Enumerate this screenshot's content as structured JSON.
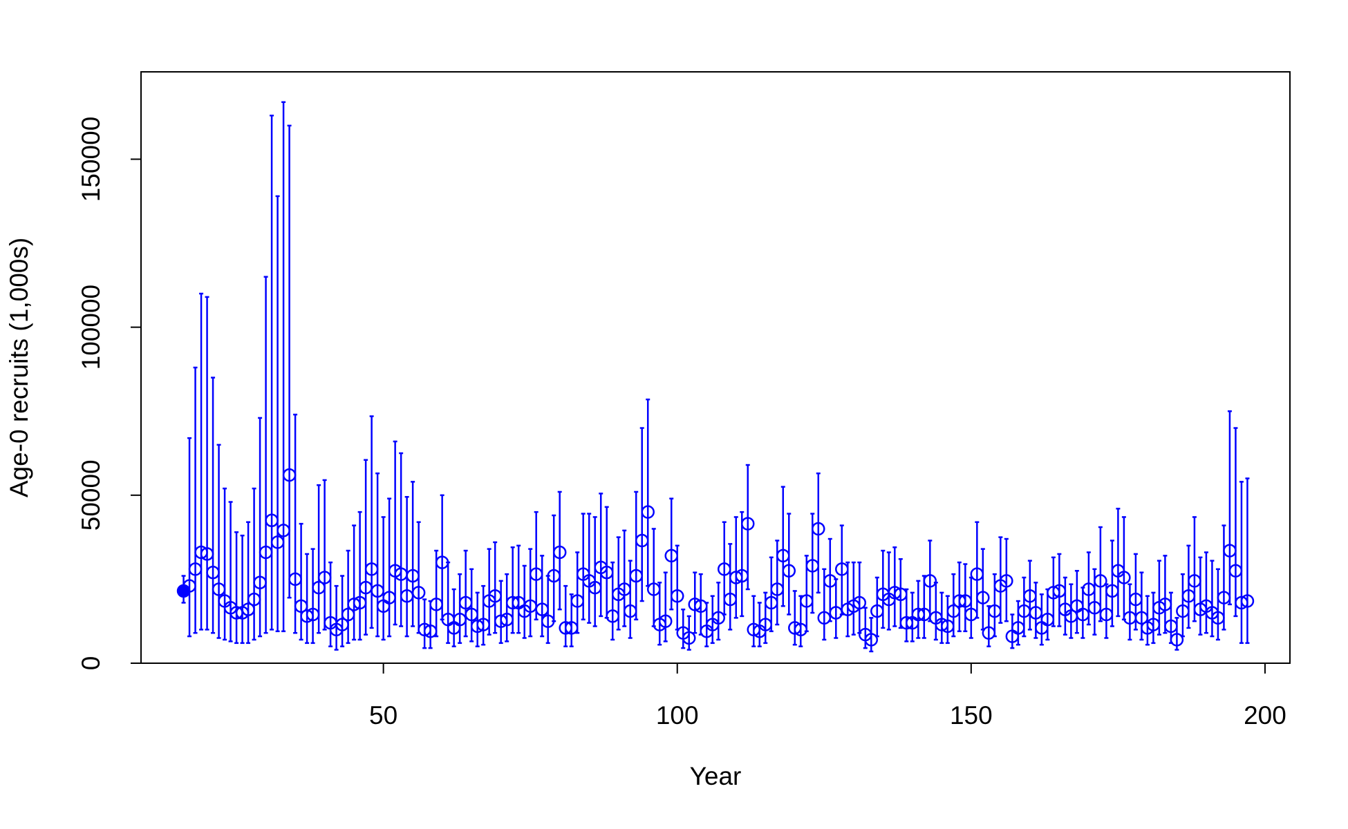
{
  "chart_data": {
    "type": "errorbar-scatter",
    "x_label": "Year",
    "y_label": "Age-0 recruits (1,000s)",
    "xlim": [
      8.76,
      204.24
    ],
    "ylim": [
      0,
      176000
    ],
    "xticks": [
      50,
      100,
      150,
      200
    ],
    "yticks": [
      0,
      50000,
      100000,
      150000
    ],
    "series": [
      {
        "color": "#0000ff",
        "marker": "filled",
        "x": [
          16
        ],
        "values": [
          21500
        ],
        "lower": [
          18000
        ],
        "upper": [
          26000
        ]
      },
      {
        "color": "#0000ff",
        "marker": "open",
        "x": [
          17,
          18,
          19,
          20,
          21,
          22,
          23,
          24,
          25,
          26,
          27,
          28,
          29,
          30,
          31,
          32,
          33,
          34,
          35,
          36,
          37,
          38,
          39,
          40,
          41,
          42,
          43,
          44,
          45,
          46,
          47,
          48,
          49,
          50,
          51,
          52,
          53,
          54,
          55,
          56,
          57,
          58,
          59,
          60,
          61,
          62,
          63,
          64,
          65,
          66,
          67,
          68,
          69,
          70,
          71,
          72,
          73,
          74,
          75,
          76,
          77,
          78,
          79,
          80,
          81,
          82,
          83,
          84,
          85,
          86,
          87,
          88,
          89,
          90,
          91,
          92,
          93,
          94,
          95,
          96,
          97,
          98,
          99,
          100,
          101,
          102,
          103,
          104,
          105,
          106,
          107,
          108,
          109,
          110,
          111,
          112,
          113,
          114,
          115,
          116,
          117,
          118,
          119,
          120,
          121,
          122,
          123,
          124,
          125,
          126,
          127,
          128,
          129,
          130,
          131,
          132,
          133,
          134,
          135,
          136,
          137,
          138,
          139,
          140,
          141,
          142,
          143,
          144,
          145,
          146,
          147,
          148,
          149,
          150,
          151,
          152,
          153,
          154,
          155,
          156,
          157,
          158,
          159,
          160,
          161,
          162,
          163,
          164,
          165,
          166,
          167,
          168,
          169,
          170,
          171,
          172,
          173,
          174,
          175,
          176,
          177,
          178,
          179,
          180,
          181,
          182,
          183,
          184,
          185,
          186,
          187,
          188,
          189,
          190,
          191,
          192,
          193,
          194,
          195,
          196,
          197
        ],
        "values": [
          23000,
          28000,
          33000,
          32500,
          27000,
          22000,
          18500,
          16500,
          15000,
          15000,
          16000,
          19000,
          24000,
          33000,
          42500,
          36000,
          39500,
          56000,
          25000,
          17000,
          14000,
          14500,
          22500,
          25500,
          12000,
          10000,
          11500,
          14500,
          17500,
          18000,
          22500,
          28000,
          21500,
          17000,
          19500,
          27500,
          26500,
          20000,
          26000,
          21000,
          10000,
          9500,
          17500,
          30000,
          13000,
          10500,
          13000,
          18000,
          14500,
          11000,
          11500,
          18500,
          20000,
          12500,
          13000,
          18000,
          18000,
          15500,
          17000,
          26500,
          16000,
          12500,
          26000,
          33000,
          10500,
          10500,
          18500,
          26500,
          24500,
          22500,
          28500,
          27000,
          14000,
          20500,
          22000,
          15500,
          26000,
          36500,
          45000,
          22000,
          11500,
          12500,
          32000,
          20000,
          9000,
          7500,
          17500,
          17000,
          9500,
          11500,
          13500,
          28000,
          19000,
          25500,
          26000,
          41500,
          10000,
          9500,
          11500,
          18000,
          22000,
          32000,
          27500,
          10500,
          10000,
          18500,
          29000,
          40000,
          13500,
          24500,
          15000,
          28000,
          16000,
          17000,
          18000,
          8500,
          7000,
          15500,
          20500,
          19000,
          21000,
          20500,
          12000,
          12000,
          14500,
          14500,
          24500,
          13500,
          11500,
          11000,
          15500,
          18500,
          18500,
          14500,
          26500,
          19500,
          9000,
          15500,
          23000,
          24500,
          8000,
          10500,
          15500,
          20000,
          15000,
          10500,
          13000,
          21000,
          21500,
          16000,
          14000,
          17000,
          14500,
          22000,
          16500,
          24500,
          14500,
          21500,
          27500,
          25500,
          13500,
          19000,
          13500,
          10500,
          11500,
          16500,
          17500,
          11000,
          7000,
          15500,
          20000,
          24500,
          16000,
          17000,
          15000,
          13500,
          19500,
          33500,
          27500,
          18000,
          18500
        ],
        "lower": [
          8000,
          9000,
          10000,
          10000,
          9000,
          7500,
          7000,
          6500,
          6000,
          6000,
          6000,
          7000,
          8000,
          9000,
          10000,
          9500,
          9500,
          19500,
          9000,
          7000,
          6000,
          6000,
          9000,
          10000,
          5000,
          4000,
          5000,
          6000,
          7000,
          7000,
          8500,
          10500,
          8000,
          7000,
          8000,
          11500,
          11000,
          8000,
          11000,
          9000,
          4500,
          4500,
          8000,
          13000,
          6000,
          5000,
          6000,
          8000,
          6500,
          5000,
          5500,
          8500,
          9000,
          6000,
          6500,
          9000,
          9000,
          7500,
          8000,
          13000,
          8000,
          6000,
          12500,
          16000,
          5000,
          5000,
          9000,
          13000,
          12000,
          11000,
          14000,
          13500,
          7000,
          10000,
          11000,
          7500,
          13000,
          18500,
          23000,
          11000,
          5500,
          6500,
          16000,
          10000,
          4500,
          4000,
          9000,
          8500,
          5000,
          6000,
          7000,
          14500,
          10000,
          13500,
          14000,
          22000,
          5000,
          5000,
          6000,
          9500,
          11500,
          17000,
          14500,
          5500,
          5000,
          9500,
          15000,
          21000,
          7000,
          12500,
          7500,
          14500,
          8000,
          8500,
          9000,
          4500,
          3500,
          8000,
          10500,
          10000,
          11000,
          10500,
          6500,
          6500,
          7500,
          7500,
          12500,
          7000,
          6000,
          6000,
          8000,
          9500,
          9500,
          7500,
          13500,
          10000,
          5000,
          8000,
          12000,
          12500,
          4500,
          5500,
          8000,
          10000,
          7500,
          5500,
          7000,
          11000,
          11000,
          8500,
          7500,
          9000,
          7500,
          11500,
          8500,
          12500,
          7500,
          11000,
          14000,
          13000,
          7000,
          10000,
          7000,
          5500,
          6000,
          8500,
          9000,
          6000,
          4000,
          8000,
          10500,
          12500,
          8500,
          9000,
          8000,
          7000,
          10000,
          17500,
          14000,
          6000,
          6000
        ],
        "upper": [
          67000,
          88000,
          110000,
          109000,
          85000,
          65000,
          52000,
          48000,
          39000,
          38000,
          42000,
          52000,
          73000,
          115000,
          163000,
          139000,
          167000,
          160000,
          74000,
          41500,
          32500,
          34000,
          53000,
          54500,
          30000,
          23000,
          26000,
          33500,
          41000,
          45000,
          60500,
          73500,
          56500,
          43500,
          49000,
          66000,
          62500,
          49500,
          54000,
          42000,
          19000,
          18500,
          33500,
          50000,
          30000,
          22000,
          26500,
          33500,
          28000,
          21000,
          23000,
          34000,
          36000,
          24500,
          26500,
          34500,
          35000,
          29000,
          34000,
          45000,
          32000,
          26000,
          44000,
          51000,
          23000,
          20500,
          33000,
          44500,
          44500,
          43500,
          50500,
          46500,
          30000,
          37500,
          39500,
          30500,
          51000,
          70000,
          78500,
          40000,
          24000,
          27000,
          49000,
          35000,
          16000,
          14000,
          27000,
          26500,
          18000,
          20000,
          24000,
          42000,
          35500,
          43500,
          45000,
          59000,
          20000,
          18000,
          21000,
          31500,
          36500,
          52500,
          44500,
          21500,
          20000,
          32000,
          44500,
          56500,
          28000,
          37000,
          25000,
          41000,
          30000,
          30000,
          30000,
          16500,
          13500,
          25500,
          33500,
          33000,
          34500,
          31000,
          22000,
          21000,
          24500,
          26000,
          36500,
          24000,
          21000,
          20000,
          26500,
          30000,
          29500,
          25500,
          42000,
          34000,
          17000,
          26500,
          37500,
          37000,
          14500,
          18500,
          25500,
          30500,
          24000,
          20500,
          22000,
          31500,
          32500,
          25500,
          23500,
          27500,
          22500,
          33000,
          28000,
          40500,
          23500,
          36500,
          46000,
          43500,
          23500,
          32500,
          27000,
          20000,
          21000,
          30500,
          32000,
          21000,
          13500,
          26500,
          35000,
          43500,
          31500,
          33000,
          30500,
          28000,
          41000,
          75000,
          70000,
          54000,
          55000
        ]
      }
    ]
  }
}
